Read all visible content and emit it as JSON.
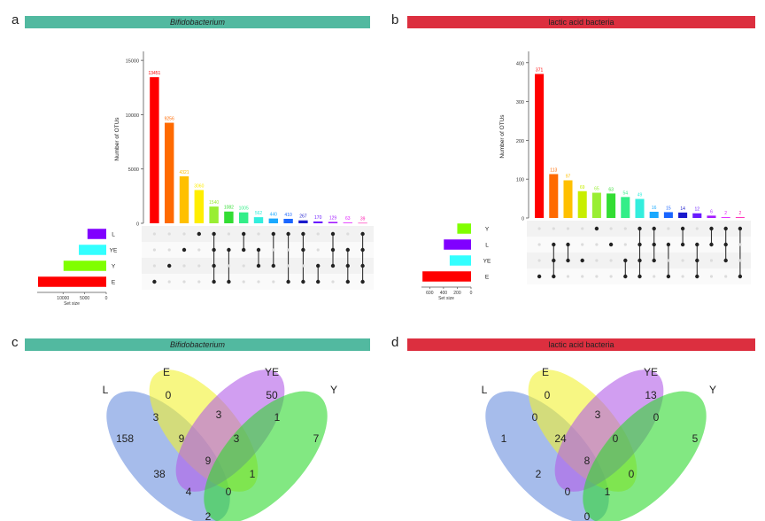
{
  "panels": {
    "a": {
      "letter": "a",
      "title": "Bifidobacterium",
      "italic": true,
      "color": "#52b9a0"
    },
    "b": {
      "letter": "b",
      "title": "lactic acid bacteria",
      "italic": false,
      "color": "#dc2f3f"
    },
    "c": {
      "letter": "c",
      "title": "Bifidobacterium",
      "italic": true,
      "color": "#52b9a0"
    },
    "d": {
      "letter": "d",
      "title": "lactic acid bacteria",
      "italic": false,
      "color": "#dc2f3f"
    }
  },
  "chart_data": [
    {
      "type": "bar",
      "panel": "a",
      "ylabel": "Number of OTUs",
      "ylim": [
        0,
        15500
      ],
      "yticks": [
        0,
        5000,
        10000,
        15000
      ],
      "values": [
        13451,
        9256,
        4321,
        3060,
        1540,
        1082,
        1005,
        562,
        440,
        410,
        267,
        170,
        129,
        63,
        39
      ],
      "bar_colors": [
        "#ff0000",
        "#ff6a00",
        "#ffc000",
        "#ffee00",
        "#99ee33",
        "#33dd33",
        "#33ee88",
        "#33eedd",
        "#1aa9ff",
        "#1a66ff",
        "#1a1acc",
        "#6a1aff",
        "#a31aff",
        "#e01aff",
        "#ff1ab0"
      ],
      "sets": [
        "L",
        "YE",
        "Y",
        "E"
      ],
      "set_sizes": [
        4350,
        6350,
        9900,
        15800
      ],
      "set_colors": [
        "#8000ff",
        "#33ffff",
        "#80ff00",
        "#ff0000"
      ],
      "set_size_label": "Set size",
      "set_size_ticks": [
        10000,
        5000,
        0
      ],
      "set_size_max": 16000,
      "matrix": [
        [
          3
        ],
        [
          2
        ],
        [
          1
        ],
        [
          0
        ],
        [
          0,
          1,
          2,
          3
        ],
        [
          1,
          3
        ],
        [
          0,
          1
        ],
        [
          1,
          2
        ],
        [
          0,
          2
        ],
        [
          0,
          3
        ],
        [
          0,
          1,
          3
        ],
        [
          2,
          3
        ],
        [
          0,
          1,
          2
        ],
        [
          1,
          2,
          3
        ],
        [
          0,
          1,
          2,
          3
        ]
      ]
    },
    {
      "type": "bar",
      "panel": "b",
      "ylabel": "Number of OTUs",
      "ylim": [
        0,
        420
      ],
      "yticks": [
        0,
        100,
        200,
        300,
        400
      ],
      "values": [
        371,
        113,
        97,
        69,
        65,
        63,
        54,
        49,
        16,
        15,
        14,
        12,
        6,
        2,
        2
      ],
      "bar_colors": [
        "#ff0000",
        "#ff6a00",
        "#ffc000",
        "#c8ee00",
        "#99ee33",
        "#33dd33",
        "#33ee88",
        "#33eedd",
        "#1aa9ff",
        "#1a66ff",
        "#1a1acc",
        "#6a1aff",
        "#a31aff",
        "#e01aff",
        "#ff1ab0"
      ],
      "sets": [
        "Y",
        "L",
        "YE",
        "E"
      ],
      "set_sizes": [
        200,
        395,
        310,
        705
      ],
      "set_colors": [
        "#80ff00",
        "#8000ff",
        "#33ffff",
        "#ff0000"
      ],
      "set_size_label": "Set size",
      "set_size_ticks": [
        600,
        400,
        200,
        0
      ],
      "set_size_max": 720,
      "matrix": [
        [
          3
        ],
        [
          1,
          2,
          3
        ],
        [
          1,
          2
        ],
        [
          2
        ],
        [
          0
        ],
        [
          1
        ],
        [
          2,
          3
        ],
        [
          0,
          1,
          2,
          3
        ],
        [
          0,
          1,
          2
        ],
        [
          1,
          3
        ],
        [
          0,
          1
        ],
        [
          1,
          2,
          3
        ],
        [
          0,
          1
        ],
        [
          0,
          1,
          2
        ],
        [
          0,
          3
        ]
      ]
    },
    {
      "type": "venn",
      "panel": "c",
      "sets": [
        "L",
        "E",
        "YE",
        "Y"
      ],
      "set_colors": [
        "#6b8fde",
        "#f2f230",
        "#b25ee8",
        "#2fd82f"
      ],
      "regions": {
        "L": 158,
        "E": 0,
        "YE": 50,
        "Y": 7,
        "L_E": 3,
        "E_YE": 3,
        "YE_Y": 1,
        "L_E_YE": 9,
        "E_YE_Y": 3,
        "L_E_YE_Y": 9,
        "L_YE": 38,
        "E_Y": 1,
        "L_YE_Y": 4,
        "L_E_Y": 0,
        "L_Y": 2
      }
    },
    {
      "type": "venn",
      "panel": "d",
      "sets": [
        "L",
        "E",
        "YE",
        "Y"
      ],
      "set_colors": [
        "#6b8fde",
        "#f2f230",
        "#b25ee8",
        "#2fd82f"
      ],
      "regions": {
        "L": 1,
        "E": 0,
        "YE": 13,
        "Y": 5,
        "L_E": 0,
        "E_YE": 3,
        "YE_Y": 0,
        "L_E_YE": 24,
        "E_YE_Y": 0,
        "L_E_YE_Y": 8,
        "L_YE": 2,
        "E_Y": 0,
        "L_YE_Y": 0,
        "L_E_Y": 1,
        "L_Y": 0
      }
    }
  ]
}
